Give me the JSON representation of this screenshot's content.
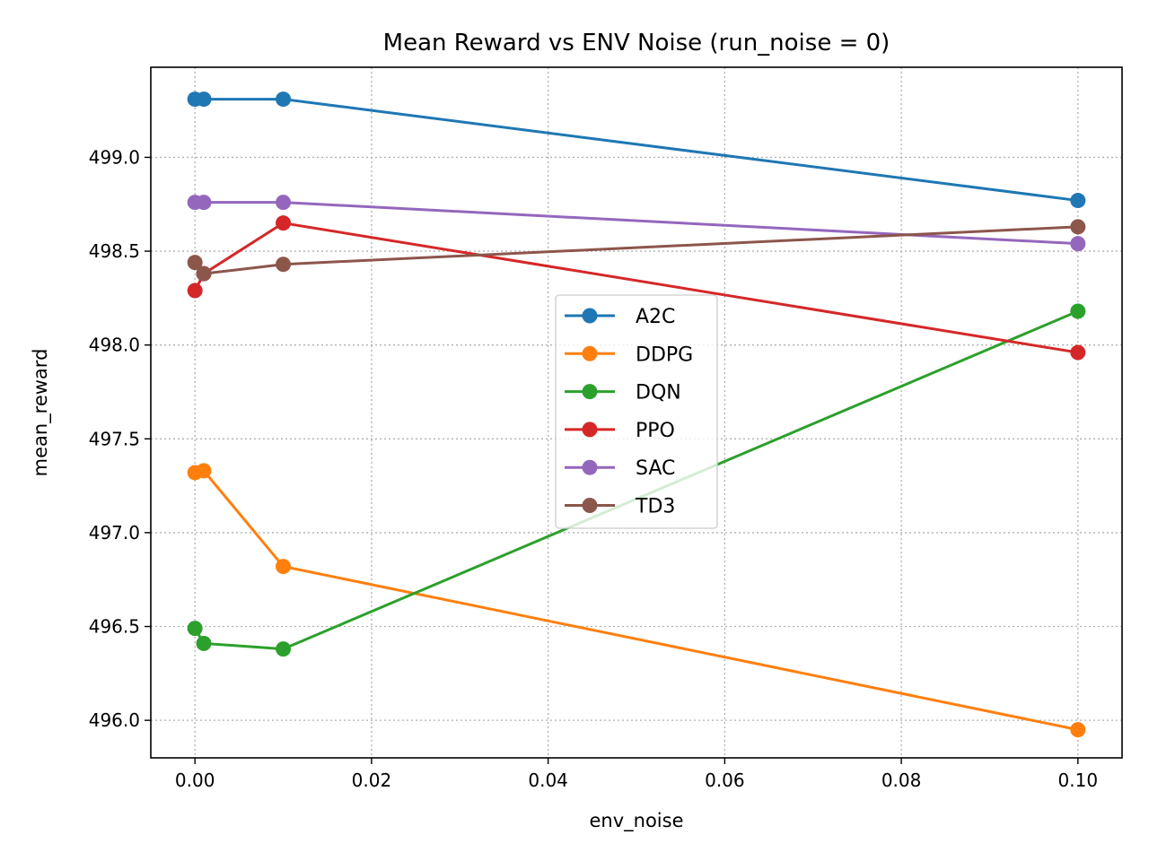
{
  "chart_data": {
    "type": "line",
    "title": "Mean Reward vs ENV Noise (run_noise = 0)",
    "xlabel": "env_noise",
    "ylabel": "mean_reward",
    "xlim": [
      -0.005,
      0.105
    ],
    "ylim": [
      495.8,
      499.48
    ],
    "xticks": [
      0.0,
      0.02,
      0.04,
      0.06,
      0.08,
      0.1
    ],
    "xtick_labels": [
      "0.00",
      "0.02",
      "0.04",
      "0.06",
      "0.08",
      "0.10"
    ],
    "yticks": [
      496.0,
      496.5,
      497.0,
      497.5,
      498.0,
      498.5,
      499.0
    ],
    "ytick_labels": [
      "496.0",
      "496.5",
      "497.0",
      "497.5",
      "498.0",
      "498.5",
      "499.0"
    ],
    "grid": true,
    "legend_position": "center",
    "x": [
      0.0,
      0.001,
      0.01,
      0.1
    ],
    "series": [
      {
        "name": "A2C",
        "color": "#1f77b4",
        "values": [
          499.31,
          499.31,
          499.31,
          498.77
        ]
      },
      {
        "name": "DDPG",
        "color": "#ff7f0e",
        "values": [
          497.32,
          497.33,
          496.82,
          495.95
        ]
      },
      {
        "name": "DQN",
        "color": "#2ca02c",
        "values": [
          496.49,
          496.41,
          496.38,
          498.18
        ]
      },
      {
        "name": "PPO",
        "color": "#d62728",
        "values": [
          498.29,
          498.38,
          498.65,
          497.96
        ]
      },
      {
        "name": "SAC",
        "color": "#9467bd",
        "values": [
          498.76,
          498.76,
          498.76,
          498.54
        ]
      },
      {
        "name": "TD3",
        "color": "#8c564b",
        "values": [
          498.44,
          498.38,
          498.43,
          498.63
        ]
      }
    ]
  }
}
